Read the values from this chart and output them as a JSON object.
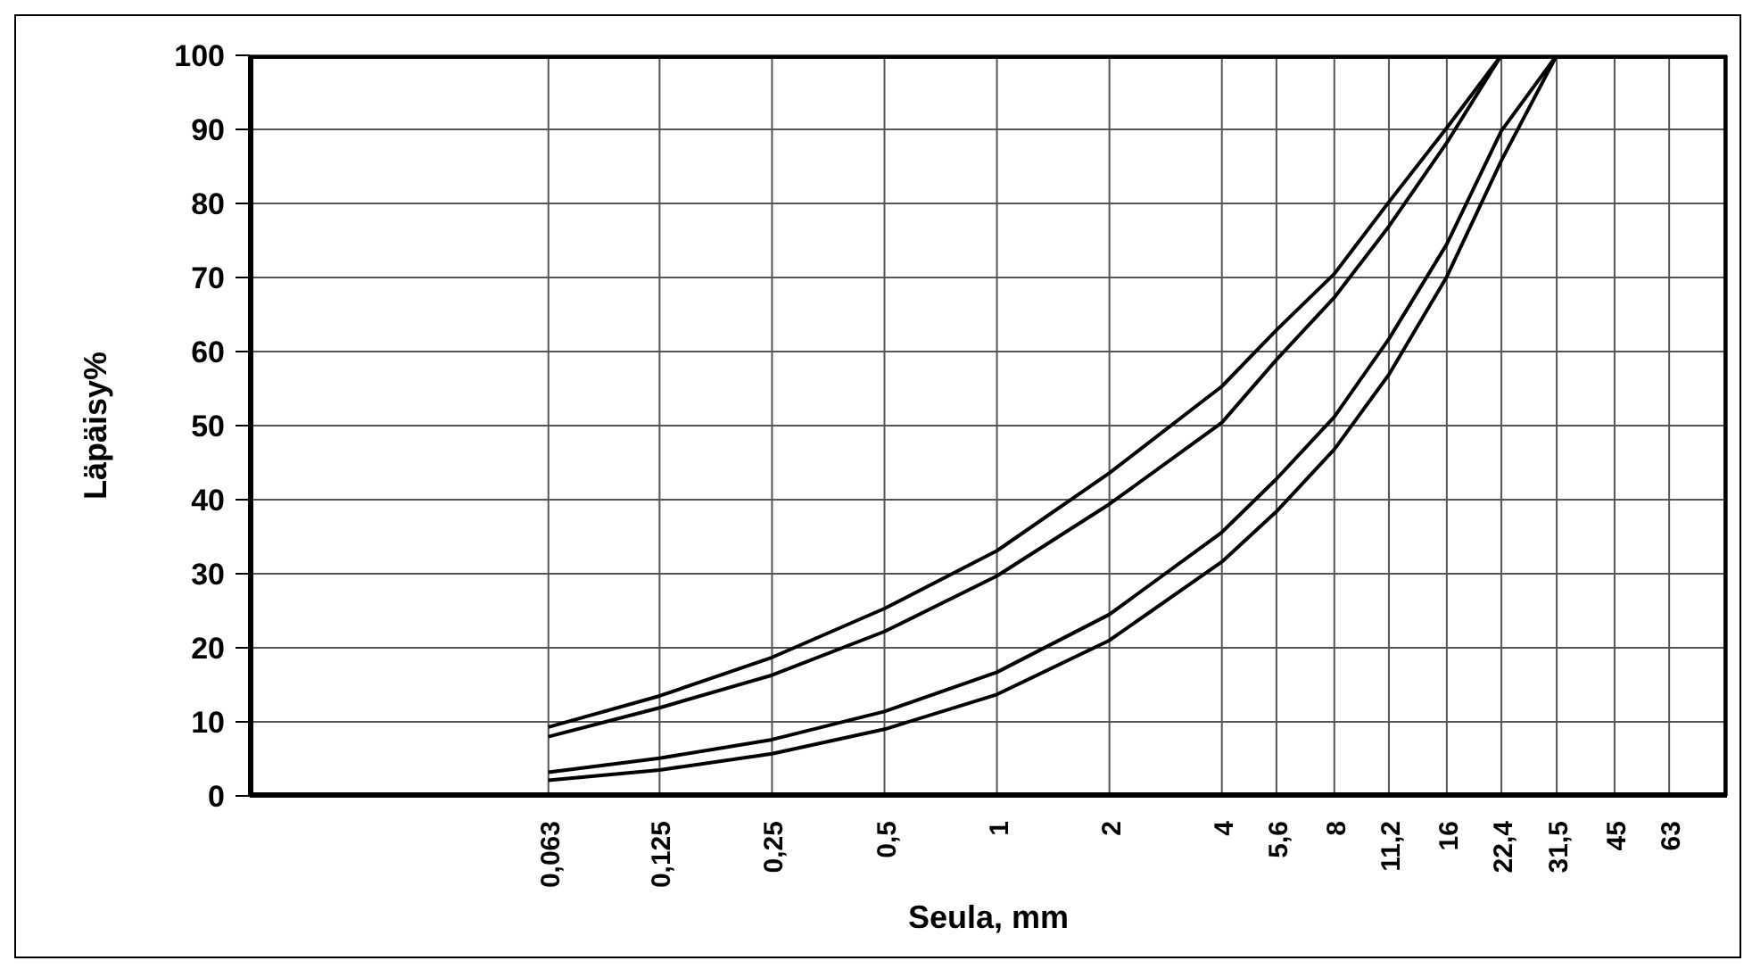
{
  "chart_data": {
    "type": "line",
    "xlabel": "Seula, mm",
    "ylabel": "Läpäisy%",
    "log": "x",
    "grid": true,
    "marker": "none",
    "line_style": "solid",
    "xlim": [
      0.01,
      90
    ],
    "ylim": [
      0,
      100
    ],
    "xticks": [
      {
        "value": 0.063,
        "label": "0,063"
      },
      {
        "value": 0.125,
        "label": "0,125"
      },
      {
        "value": 0.25,
        "label": "0,25"
      },
      {
        "value": 0.5,
        "label": "0,5"
      },
      1,
      2,
      4,
      {
        "value": 5.6,
        "label": "5,6"
      },
      8,
      {
        "value": 11.2,
        "label": "11,2"
      },
      16,
      {
        "value": 22.4,
        "label": "22,4"
      },
      {
        "value": 31.5,
        "label": "31,5"
      },
      45,
      63
    ],
    "yticks": [
      0,
      10,
      20,
      30,
      40,
      50,
      60,
      70,
      80,
      90,
      100
    ],
    "series": [
      {
        "color": "#000000",
        "x": [
          0.063,
          0.125,
          0.25,
          0.5,
          1,
          2,
          4,
          5.6,
          8,
          11.2,
          16,
          22.4
        ],
        "values": [
          9.3,
          13.5,
          18.7,
          25.3,
          33.1,
          43.6,
          55.3,
          62.9,
          70.5,
          80.2,
          90.2,
          100
        ]
      },
      {
        "color": "#000000",
        "x": [
          0.063,
          0.125,
          0.25,
          0.5,
          1,
          2,
          4,
          5.6,
          8,
          11.2,
          16,
          22.4
        ],
        "values": [
          8.0,
          11.9,
          16.3,
          22.2,
          29.7,
          39.4,
          50.4,
          58.9,
          67.3,
          76.9,
          88.2,
          100
        ]
      },
      {
        "color": "#000000",
        "x": [
          0.063,
          0.125,
          0.25,
          0.5,
          1,
          2,
          4,
          5.6,
          8,
          11.2,
          16,
          22.4,
          31.5
        ],
        "values": [
          3.2,
          5.1,
          7.6,
          11.4,
          16.7,
          24.5,
          35.6,
          42.8,
          51.2,
          61.7,
          74.5,
          89.8,
          100
        ]
      },
      {
        "color": "#000000",
        "x": [
          0.063,
          0.125,
          0.25,
          0.5,
          1,
          2,
          4,
          5.6,
          8,
          11.2,
          16,
          22.4,
          31.5
        ],
        "values": [
          2.1,
          3.5,
          5.7,
          9.0,
          13.7,
          21.0,
          31.6,
          38.4,
          46.8,
          56.9,
          70.1,
          85.8,
          100
        ]
      }
    ]
  }
}
